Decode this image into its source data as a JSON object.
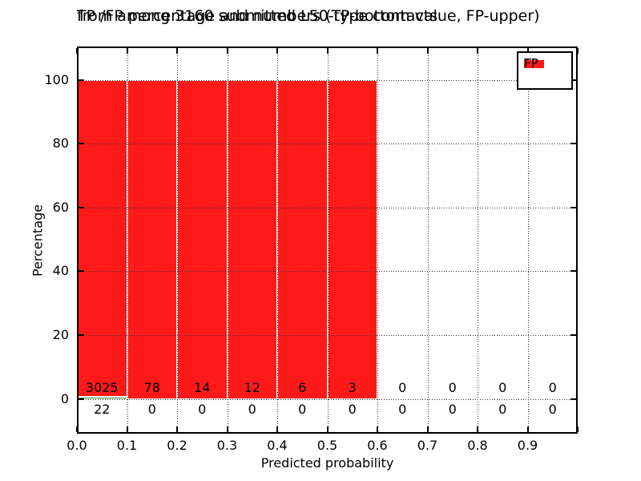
{
  "chart_data": {
    "type": "bar",
    "mode": "stacked-percentage",
    "title_line1": "TP /FP percentage and numbers (TP-bottom value, FP-upper)",
    "title_line2": "from among 3160 submitted L50-type contacts",
    "xlabel": "Predicted probability",
    "ylabel": "Percentage",
    "x_tick_labels": [
      "0.0",
      "0.1",
      "0.2",
      "0.3",
      "0.4",
      "0.5",
      "0.6",
      "0.7",
      "0.8",
      "0.9"
    ],
    "y_tick_values": [
      0,
      20,
      40,
      60,
      80,
      100
    ],
    "xlim": [
      0.0,
      1.0
    ],
    "ylim": [
      -11,
      110
    ],
    "bin_width": 0.1,
    "bin_starts": [
      0.0,
      0.1,
      0.2,
      0.3,
      0.4,
      0.5,
      0.6,
      0.7,
      0.8,
      0.9
    ],
    "series": [
      {
        "name": "TP",
        "color": "#228B22",
        "counts": [
          22,
          0,
          0,
          0,
          0,
          0,
          0,
          0,
          0,
          0
        ]
      },
      {
        "name": "FP",
        "color": "#FF1A1A",
        "counts": [
          3025,
          78,
          14,
          12,
          6,
          3,
          0,
          0,
          0,
          0
        ]
      }
    ],
    "grid": "dotted",
    "legend_position": "upper-right",
    "background": "#ffffff"
  }
}
